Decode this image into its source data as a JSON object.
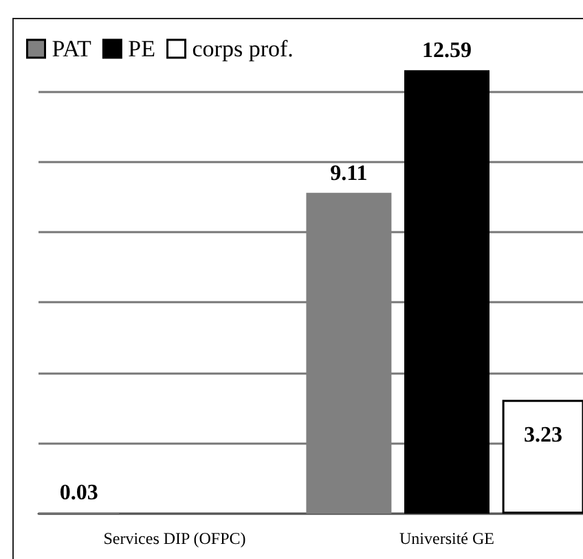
{
  "chart_data": {
    "type": "bar",
    "categories": [
      "Services DIP (OFPC)",
      "Université GE"
    ],
    "series": [
      {
        "name": "PAT",
        "color": "#808080",
        "values": [
          0.03,
          9.11
        ]
      },
      {
        "name": "PE",
        "color": "#000000",
        "values": [
          null,
          12.59
        ]
      },
      {
        "name": "corps prof.",
        "color": "#ffffff",
        "values": [
          null,
          3.23
        ]
      }
    ],
    "ylim": [
      0,
      14
    ],
    "yticks": [
      {
        "value": 0,
        "label": null
      },
      {
        "value": 2,
        "label": null
      },
      {
        "value": 4,
        "label": null
      },
      {
        "value": 6,
        "label": null
      },
      {
        "value": 8,
        "label": null
      },
      {
        "value": 10,
        "label": null
      },
      {
        "value": 12,
        "label": null
      }
    ],
    "grid": "y",
    "tick_labels": "x",
    "legend": "top left",
    "data_labels": true
  }
}
